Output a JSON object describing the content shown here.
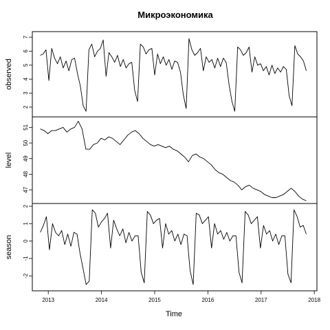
{
  "chart_data": {
    "type": "line",
    "title": "Микроэкономика",
    "xlabel": "Time",
    "xlim": [
      2012.7,
      2018.05
    ],
    "x_ticks": [
      "2013",
      "2014",
      "2015",
      "2016",
      "2017",
      "2018"
    ],
    "x_tick_values": [
      2013,
      2014,
      2015,
      2016,
      2017,
      2018
    ],
    "x": [
      2012.85,
      2012.9,
      2012.95,
      2013.0,
      2013.05,
      2013.1,
      2013.15,
      2013.2,
      2013.25,
      2013.3,
      2013.35,
      2013.4,
      2013.45,
      2013.5,
      2013.55,
      2013.6,
      2013.65,
      2013.7,
      2013.75,
      2013.8,
      2013.85,
      2013.9,
      2013.95,
      2014.0,
      2014.05,
      2014.1,
      2014.15,
      2014.2,
      2014.25,
      2014.3,
      2014.35,
      2014.4,
      2014.45,
      2014.5,
      2014.55,
      2014.6,
      2014.65,
      2014.7,
      2014.75,
      2014.8,
      2014.85,
      2014.9,
      2014.95,
      2015.0,
      2015.05,
      2015.1,
      2015.15,
      2015.2,
      2015.25,
      2015.3,
      2015.35,
      2015.4,
      2015.45,
      2015.5,
      2015.55,
      2015.6,
      2015.65,
      2015.7,
      2015.75,
      2015.8,
      2015.85,
      2015.9,
      2015.95,
      2016.0,
      2016.05,
      2016.1,
      2016.15,
      2016.2,
      2016.25,
      2016.3,
      2016.35,
      2016.4,
      2016.45,
      2016.5,
      2016.55,
      2016.6,
      2016.65,
      2016.7,
      2016.75,
      2016.8,
      2016.85,
      2016.9,
      2016.95,
      2017.0,
      2017.05,
      2017.1,
      2017.15,
      2017.2,
      2017.25,
      2017.3,
      2017.35,
      2017.4,
      2017.45,
      2017.5,
      2017.55,
      2017.6,
      2017.65,
      2017.7,
      2017.75,
      2017.8,
      2017.85
    ],
    "panels": [
      {
        "ylabel": "observed",
        "ylim": [
          1.5,
          7.2
        ],
        "y_ticks": [
          "2",
          "3",
          "4",
          "5",
          "6",
          "7"
        ],
        "y_tick_values": [
          2,
          3,
          4,
          5,
          6,
          7
        ],
        "values": [
          5.7,
          5.8,
          6.1,
          3.9,
          6.2,
          5.5,
          5.1,
          5.6,
          4.8,
          5.3,
          4.6,
          5.4,
          5.5,
          4.4,
          3.5,
          2.1,
          1.7,
          6.1,
          6.5,
          5.6,
          6.0,
          6.2,
          6.8,
          4.2,
          5.9,
          5.6,
          5.2,
          5.7,
          4.9,
          5.4,
          4.8,
          5.1,
          5.2,
          3.2,
          2.4,
          6.5,
          6.3,
          5.8,
          6.1,
          6.2,
          4.3,
          5.8,
          5.1,
          5.6,
          5.0,
          5.4,
          4.7,
          5.3,
          5.2,
          4.5,
          2.9,
          1.9,
          6.9,
          6.1,
          5.7,
          5.9,
          6.2,
          4.6,
          5.6,
          5.2,
          5.4,
          4.8,
          5.5,
          4.9,
          5.5,
          5.2,
          3.6,
          2.4,
          1.7,
          6.3,
          6.1,
          5.7,
          5.9,
          6.3,
          4.5,
          5.6,
          5.0,
          5.1,
          4.6,
          4.9,
          4.3,
          5.0,
          4.4,
          4.8,
          4.5,
          4.9,
          4.7,
          2.8,
          2.1,
          6.4,
          5.8,
          5.6,
          5.3,
          4.6
        ]
      },
      {
        "ylabel": "level",
        "ylim": [
          46.3,
          51.5
        ],
        "y_ticks": [
          "47",
          "48",
          "49",
          "50",
          "51"
        ],
        "y_tick_values": [
          47,
          48,
          49,
          50,
          51
        ],
        "values": [
          50.9,
          50.8,
          50.6,
          50.8,
          50.8,
          50.9,
          51.0,
          50.7,
          50.9,
          51.0,
          51.4,
          50.9,
          49.6,
          49.6,
          49.9,
          50.0,
          50.3,
          50.2,
          50.4,
          50.3,
          50.1,
          49.9,
          50.2,
          50.5,
          50.7,
          50.8,
          50.6,
          50.3,
          50.1,
          49.9,
          49.8,
          49.9,
          49.8,
          49.7,
          49.8,
          49.6,
          49.5,
          49.3,
          49.1,
          48.8,
          49.2,
          49.3,
          49.1,
          49.0,
          48.8,
          48.6,
          48.3,
          48.1,
          48.0,
          47.8,
          47.6,
          47.5,
          47.3,
          47.0,
          47.2,
          47.3,
          47.1,
          47.0,
          46.9,
          46.7,
          46.6,
          46.5,
          46.5,
          46.6,
          46.7,
          46.9,
          47.1,
          46.9,
          46.6,
          46.4,
          46.3
        ]
      },
      {
        "ylabel": "season",
        "ylim": [
          -2.7,
          2.0
        ],
        "y_ticks": [
          "-2",
          "-1",
          "0",
          "1",
          "2"
        ],
        "y_tick_values": [
          -2,
          -1,
          0,
          1,
          2
        ],
        "values": [
          0.5,
          0.9,
          1.4,
          -0.5,
          1.0,
          0.5,
          0.3,
          0.6,
          -0.2,
          0.4,
          -0.3,
          0.5,
          0.4,
          -0.7,
          -1.6,
          -2.5,
          -2.3,
          1.8,
          1.6,
          0.8,
          1.1,
          1.3,
          1.6,
          -0.4,
          1.2,
          0.7,
          0.3,
          0.7,
          -0.1,
          0.5,
          0.0,
          0.3,
          0.3,
          -1.8,
          -2.4,
          1.7,
          1.5,
          1.0,
          1.2,
          1.3,
          -0.4,
          1.0,
          0.4,
          0.6,
          0.0,
          0.4,
          -0.2,
          0.4,
          0.3,
          -1.7,
          -2.5,
          1.6,
          1.5,
          1.0,
          1.2,
          1.4,
          -0.4,
          1.0,
          0.4,
          0.6,
          0.1,
          0.5,
          0.0,
          0.3,
          0.3,
          -1.8,
          -2.4,
          1.7,
          1.5,
          1.0,
          1.2,
          1.4,
          -0.4,
          0.9,
          0.4,
          0.6,
          0.0,
          0.4,
          -0.2,
          0.3,
          0.3,
          -1.9,
          -2.4,
          1.8,
          1.4,
          0.8,
          0.9,
          0.4
        ]
      }
    ]
  }
}
